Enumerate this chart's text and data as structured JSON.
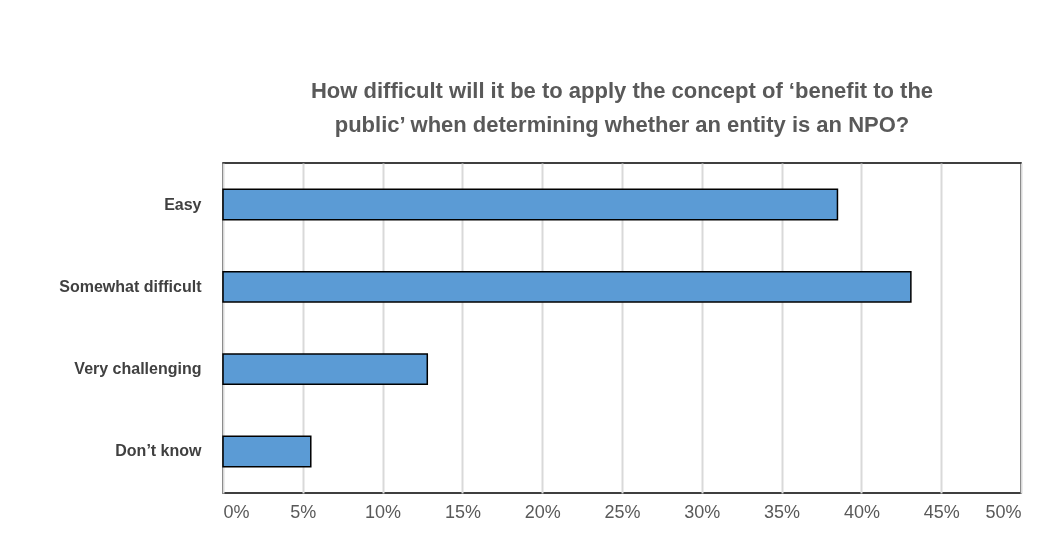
{
  "chart_data": {
    "type": "bar",
    "orientation": "horizontal",
    "title": [
      "How difficult will it be to apply the concept of ‘benefit to the",
      "public’ when determining whether an entity is an NPO?"
    ],
    "categories": [
      "Easy",
      "Somewhat difficult",
      "Very challenging",
      "Don’t know"
    ],
    "values": [
      38.5,
      43.1,
      12.8,
      5.5
    ],
    "color": "#5b9bd5",
    "xlim": [
      0,
      50
    ],
    "xticks": [
      {
        "value": 0,
        "label": "0%"
      },
      {
        "value": 5,
        "label": "5%"
      },
      {
        "value": 10,
        "label": "10%"
      },
      {
        "value": 15,
        "label": "15%"
      },
      {
        "value": 20,
        "label": "20%"
      },
      {
        "value": 25,
        "label": "25%"
      },
      {
        "value": 30,
        "label": "30%"
      },
      {
        "value": 35,
        "label": "35%"
      },
      {
        "value": 40,
        "label": "40%"
      },
      {
        "value": 45,
        "label": "45%"
      },
      {
        "value": 50,
        "label": "50%"
      }
    ],
    "grid": "x"
  }
}
